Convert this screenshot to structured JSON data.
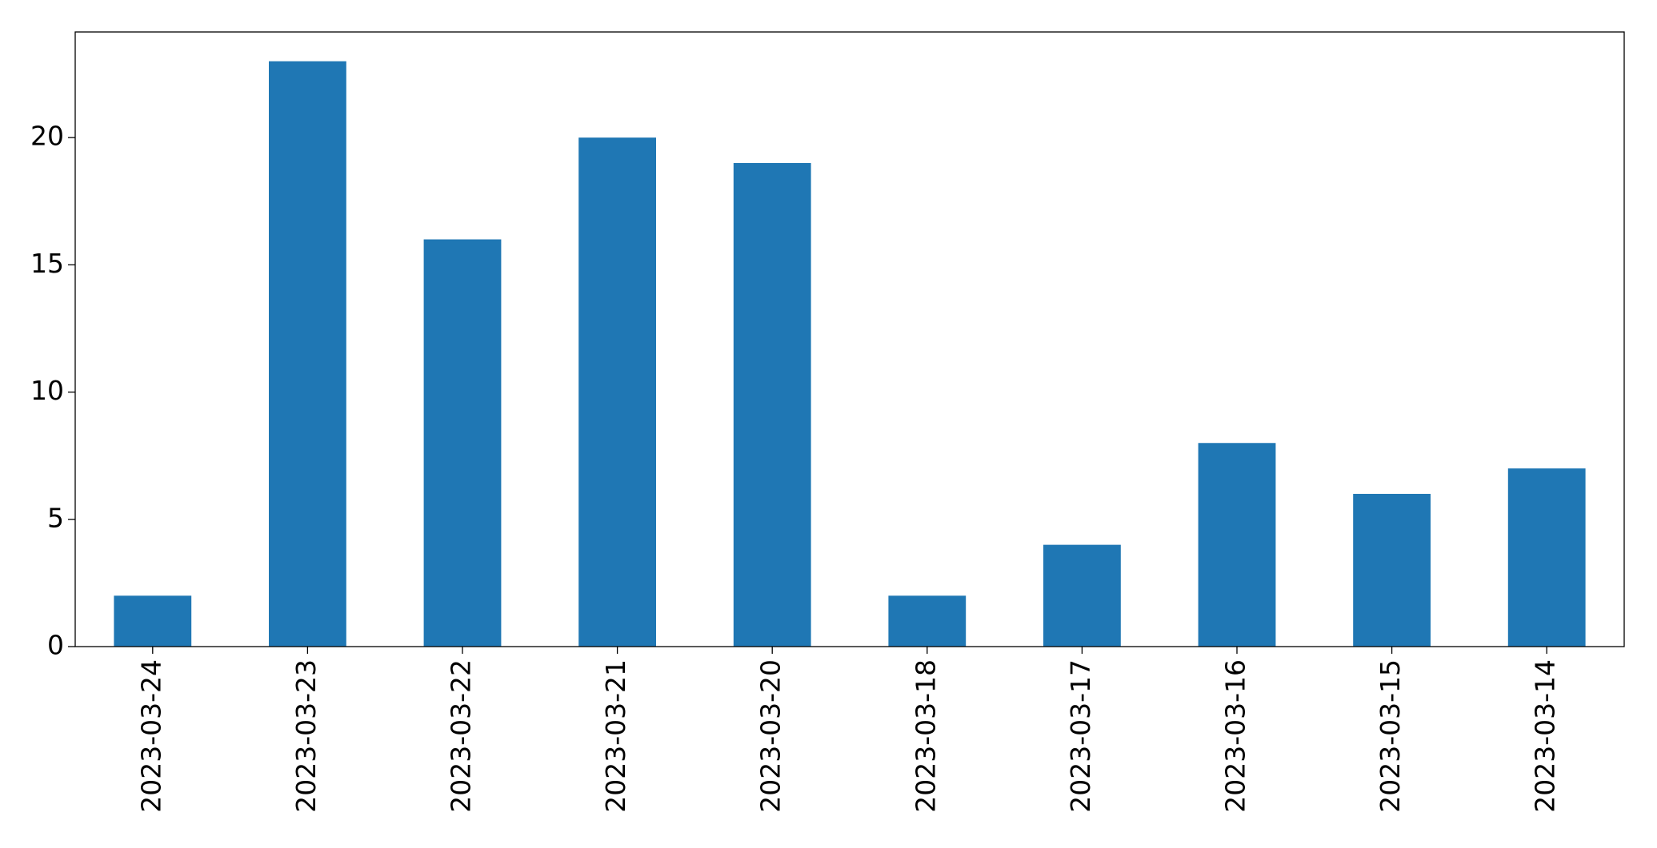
{
  "chart_data": {
    "type": "bar",
    "categories": [
      "2023-03-24",
      "2023-03-23",
      "2023-03-22",
      "2023-03-21",
      "2023-03-20",
      "2023-03-18",
      "2023-03-17",
      "2023-03-16",
      "2023-03-15",
      "2023-03-14"
    ],
    "values": [
      2,
      23,
      16,
      20,
      19,
      2,
      4,
      8,
      6,
      7
    ],
    "color": "#1f77b4",
    "ylim": [
      0,
      24.15
    ],
    "yticks": [
      0,
      5,
      10,
      15,
      20
    ],
    "grid": false
  }
}
